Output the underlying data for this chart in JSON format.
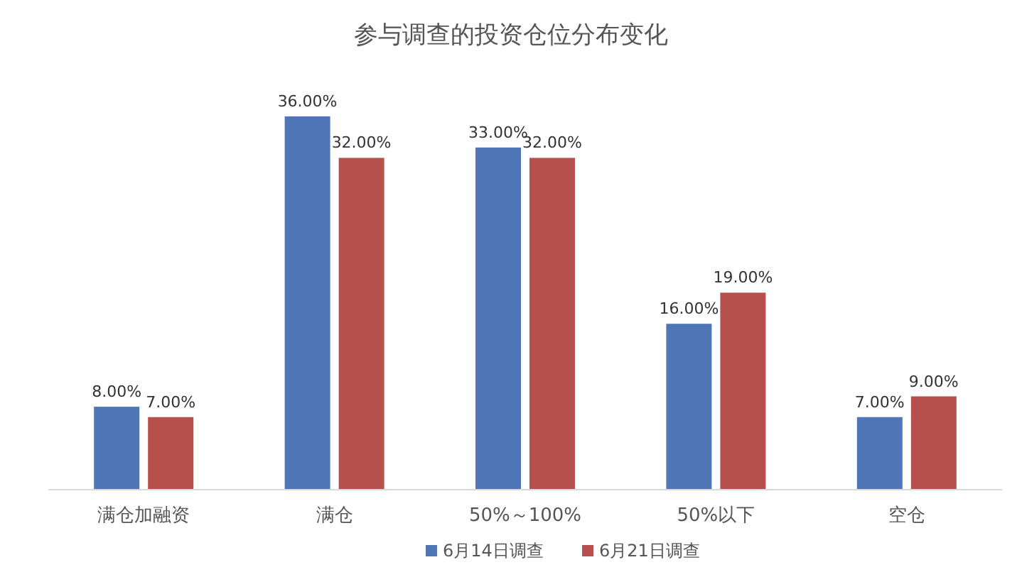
{
  "chart_data": {
    "type": "bar",
    "title": "参与调查的投资仓位分布变化",
    "categories": [
      "满仓加融资",
      "满仓",
      "50%～100%",
      "50%以下",
      "空仓"
    ],
    "series": [
      {
        "name": "6月14日调查",
        "color": "#4f77b8",
        "values": [
          8,
          36,
          33,
          16,
          7
        ],
        "value_labels": [
          "8.00%",
          "36.00%",
          "33.00%",
          "16.00%",
          "7.00%"
        ]
      },
      {
        "name": "6月21日调查",
        "color": "#b5504d",
        "values": [
          7,
          32,
          32,
          19,
          9
        ],
        "value_labels": [
          "7.00%",
          "32.00%",
          "32.00%",
          "19.00%",
          "9.00%"
        ]
      }
    ],
    "legend": "bottom",
    "grid": false
  }
}
